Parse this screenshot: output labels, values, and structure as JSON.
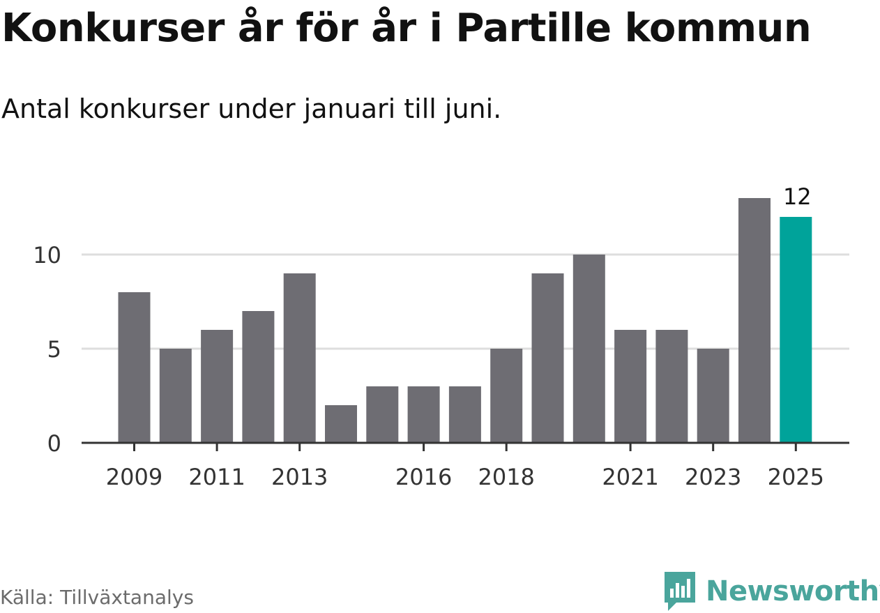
{
  "header": {
    "title": "Konkurser år för år i Partille kommun",
    "subtitle": "Antal konkurser under januari till juni."
  },
  "footer": {
    "source": "Källa: Tillväxtanalys",
    "brand": "Newsworthy",
    "brand_icon": "newsworthy-chart-bubble-icon"
  },
  "colors": {
    "bar": "#6e6d73",
    "highlight": "#00a39a",
    "grid": "#dedede",
    "axis": "#333333",
    "text": "#333333",
    "brand": "#4aa59c"
  },
  "chart_data": {
    "type": "bar",
    "categories": [
      "2009",
      "2010",
      "2011",
      "2012",
      "2013",
      "2014",
      "2015",
      "2016",
      "2017",
      "2018",
      "2019",
      "2020",
      "2021",
      "2022",
      "2023",
      "2024",
      "2025"
    ],
    "values": [
      8,
      5,
      6,
      7,
      9,
      2,
      3,
      3,
      3,
      5,
      9,
      10,
      6,
      6,
      5,
      13,
      12
    ],
    "highlight_category": "2025",
    "data_labels": [
      {
        "category": "2025",
        "text": "12"
      }
    ],
    "x_tick_labels": [
      "2009",
      "2011",
      "2013",
      "2016",
      "2018",
      "2021",
      "2023",
      "2025"
    ],
    "y_ticks": [
      0,
      5,
      10
    ],
    "y_tick_labels": [
      "0",
      "5",
      "10"
    ],
    "ylim": [
      0,
      13
    ],
    "grid": true,
    "legend": false,
    "xlabel": "",
    "ylabel": ""
  }
}
